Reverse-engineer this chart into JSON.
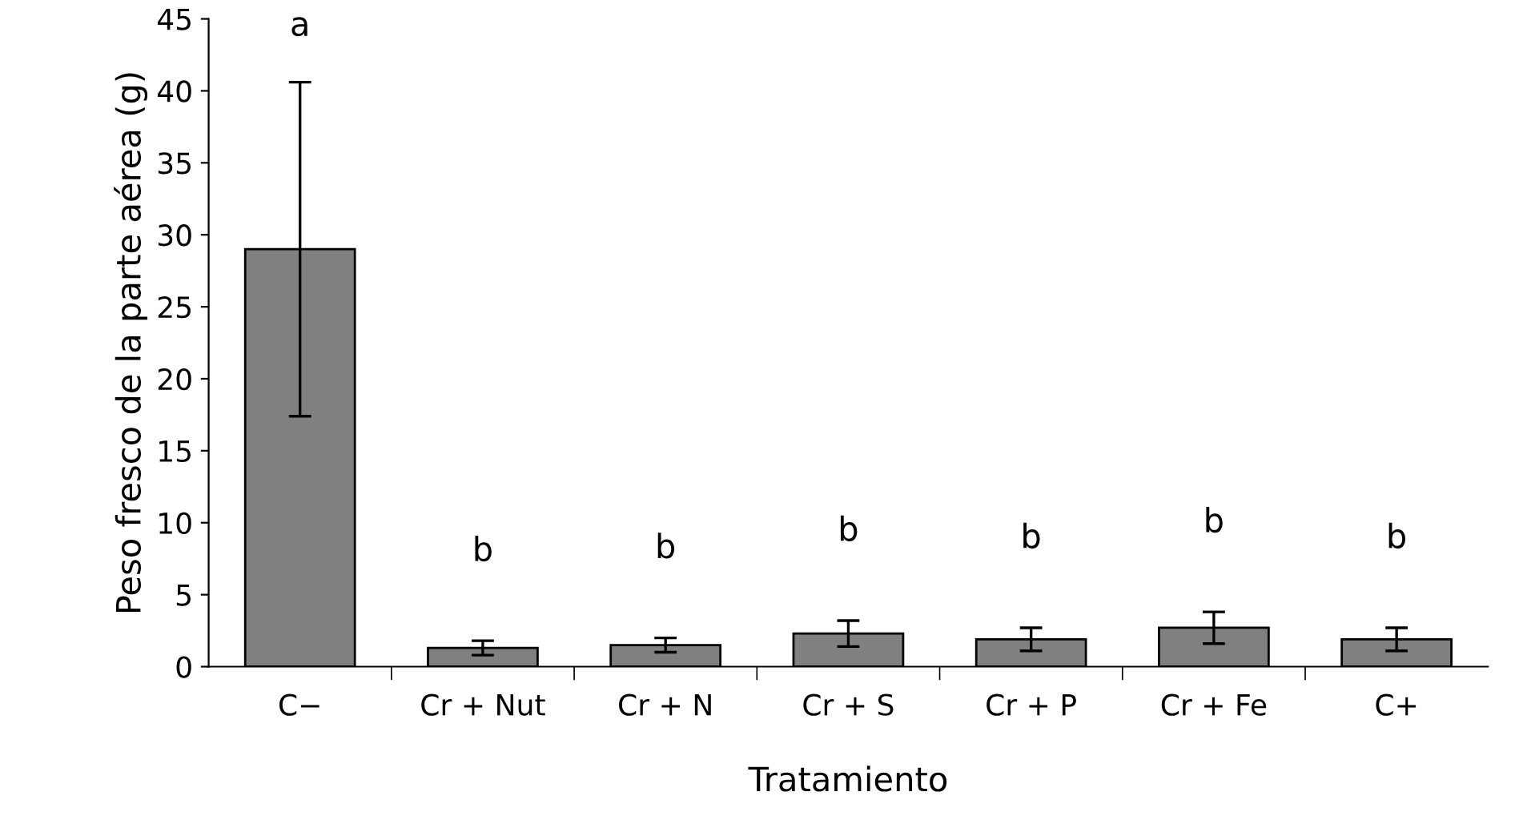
{
  "chart_data": {
    "type": "bar",
    "xlabel": "Tratamiento",
    "ylabel": "Peso fresco de la parte aérea (g)",
    "categories": [
      "C−",
      "Cr + Nut",
      "Cr + N",
      "Cr + S",
      "Cr + P",
      "Cr + Fe",
      "C+"
    ],
    "values": [
      29,
      1.3,
      1.5,
      2.3,
      1.9,
      2.7,
      1.9
    ],
    "errors": [
      11.6,
      0.5,
      0.5,
      0.9,
      0.8,
      1.1,
      0.8
    ],
    "color": "#808080",
    "ylim": [
      0,
      45
    ],
    "yticks": [
      0,
      5,
      10,
      15,
      20,
      25,
      30,
      35,
      40,
      45
    ],
    "grid": false,
    "legend": false,
    "annotations": [
      "a",
      "b",
      "b",
      "b",
      "b",
      "b",
      "b"
    ]
  }
}
